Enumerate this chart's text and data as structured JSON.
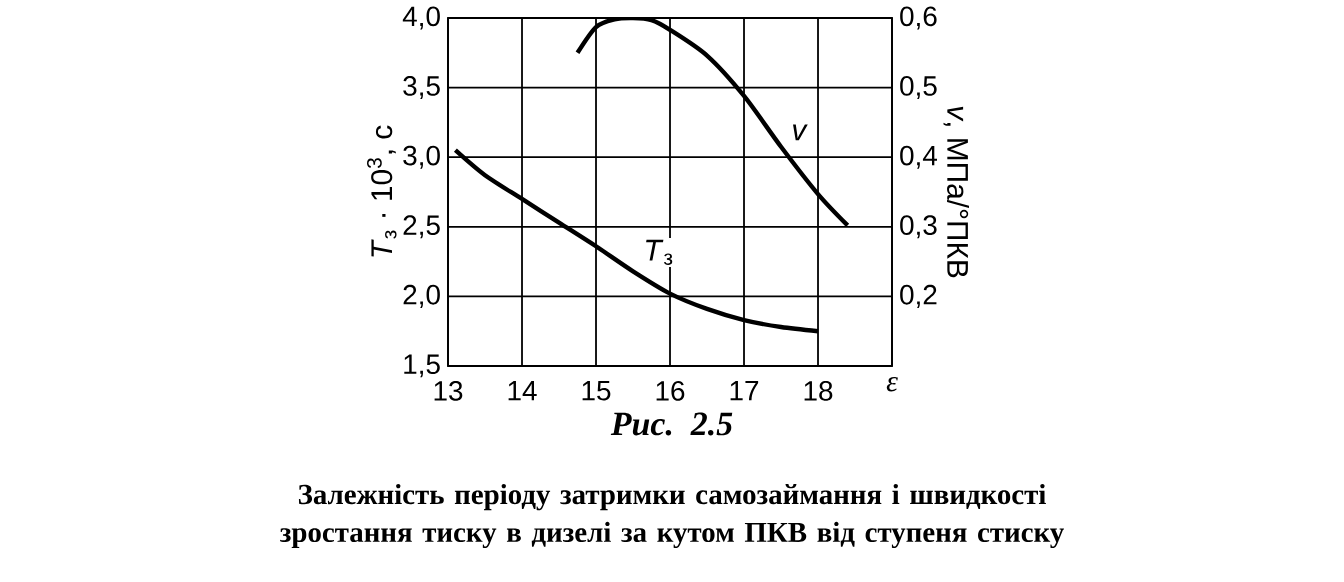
{
  "chart_data": {
    "type": "line",
    "xlabel": "*ε*",
    "ylabel": "*T*$_{з}$ · 10$^{3}$, с",
    "y2label": "*v*, МПа/°ПКВ",
    "xlim": [
      13,
      19
    ],
    "xticks": [
      13,
      14,
      15,
      16,
      17,
      18
    ],
    "ylim": [
      1.5,
      4.0
    ],
    "yticks": [
      {
        "value": 1.5,
        "label": "1,5"
      },
      {
        "value": 2.0,
        "label": "2,0"
      },
      {
        "value": 2.5,
        "label": "2,5"
      },
      {
        "value": 3.0,
        "label": "3,0"
      },
      {
        "value": 3.5,
        "label": "3,5"
      },
      {
        "value": 4.0,
        "label": "4,0"
      }
    ],
    "y2lim": [
      0.1,
      0.6
    ],
    "y2ticks": [
      {
        "value": 0.2,
        "label": "0,2"
      },
      {
        "value": 0.3,
        "label": "0,3"
      },
      {
        "value": 0.4,
        "label": "0,4"
      },
      {
        "value": 0.5,
        "label": "0,5"
      },
      {
        "value": 0.6,
        "label": "0,6"
      }
    ],
    "grid": true,
    "marker": "none",
    "line_style": "solid",
    "series": [
      {
        "name": "*T*$_{з}$",
        "color": "#000000",
        "axis": "y",
        "x": [
          13.1,
          13.5,
          14,
          14.5,
          15,
          15.5,
          16,
          16.5,
          17,
          17.5,
          18
        ],
        "values": [
          3.05,
          2.87,
          2.7,
          2.53,
          2.36,
          2.18,
          2.02,
          1.91,
          1.83,
          1.78,
          1.75
        ]
      },
      {
        "name": "*v*",
        "color": "#000000",
        "axis": "y2",
        "x": [
          14.75,
          15,
          15.25,
          15.5,
          15.75,
          16,
          16.5,
          17,
          17.5,
          18,
          18.4
        ],
        "values": [
          0.55,
          0.587,
          0.598,
          0.6,
          0.597,
          0.583,
          0.546,
          0.488,
          0.415,
          0.347,
          0.302
        ]
      }
    ],
    "annotations": [
      "Рис. 2.5",
      "Залежність періоду затримки самозаймання і швидкості зростання тиску в дизелі за кутом ПКВ від ступеня стиску"
    ]
  }
}
